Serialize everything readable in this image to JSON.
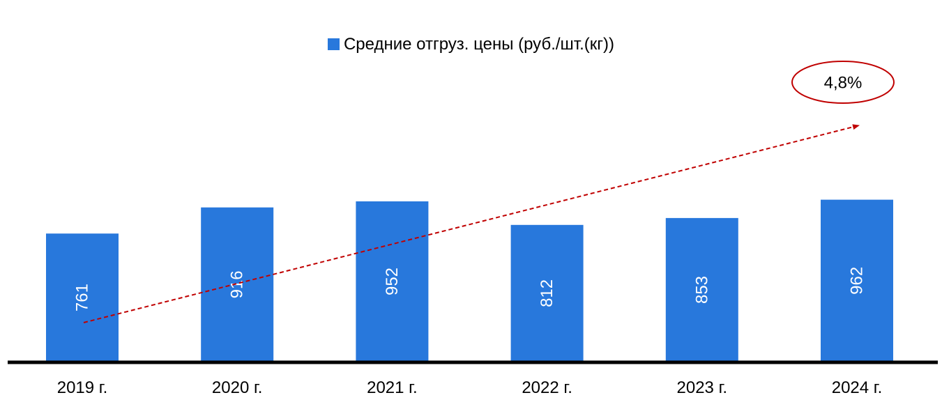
{
  "chart_data": {
    "type": "bar",
    "categories": [
      "2019 г.",
      "2020 г.",
      "2021 г.",
      "2022 г.",
      "2023 г.",
      "2024 г."
    ],
    "series": [
      {
        "name": "Средние отгруз. цены (руб./шт.(кг))",
        "values": [
          761,
          916,
          952,
          812,
          853,
          962
        ],
        "color": "#2878DC"
      }
    ],
    "ylim": [
      0,
      1900
    ],
    "grid": false,
    "legend": "top-center",
    "data_labels": "inside-rotated",
    "trend_arrow": {
      "style": "dashed",
      "color": "#C00000",
      "annotation": "4,8%"
    }
  }
}
